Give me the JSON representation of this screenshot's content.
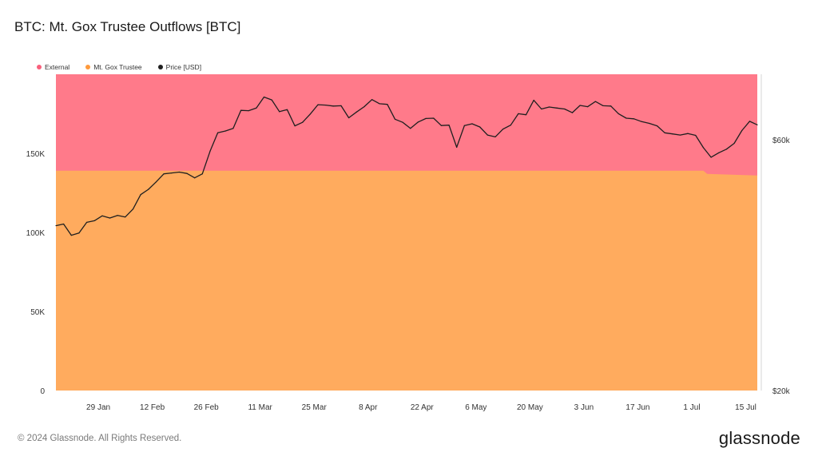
{
  "chart_data": {
    "type": "area",
    "title": "BTC: Mt. Gox Trustee Outflows [BTC]",
    "x_ticks": [
      "29 Jan",
      "12 Feb",
      "26 Feb",
      "11 Mar",
      "25 Mar",
      "8 Apr",
      "22 Apr",
      "6 May",
      "20 May",
      "3 Jun",
      "17 Jun",
      "1 Jul",
      "15 Jul"
    ],
    "x_range": [
      "2024-01-18",
      "2024-07-18"
    ],
    "y_left": {
      "ticks": [
        "0",
        "50K",
        "100K",
        "150K"
      ],
      "values": [
        0,
        50000,
        100000,
        150000
      ],
      "ylim": [
        0,
        200000
      ]
    },
    "y_right": {
      "ticks": [
        "$20k",
        "$60k"
      ],
      "values": [
        20000,
        60000
      ],
      "scale": "log",
      "ylim": [
        20000,
        80000
      ]
    },
    "legend": {
      "position": "top-left",
      "entries": [
        "External",
        "Mt. Gox Trustee",
        "Price [USD]"
      ]
    },
    "series": [
      {
        "name": "External",
        "color": "#ff7a8a",
        "axis": "left",
        "type": "area",
        "x": [
          "2024-01-18",
          "2024-07-18"
        ],
        "values": [
          61000,
          64000
        ]
      },
      {
        "name": "Mt. Gox Trustee",
        "color": "#ffab5e",
        "axis": "left",
        "type": "area",
        "x": [
          "2024-01-18",
          "2024-07-04",
          "2024-07-05",
          "2024-07-18"
        ],
        "values": [
          139000,
          139000,
          137000,
          136000
        ]
      },
      {
        "name": "Price [USD]",
        "color": "#1f1f1f",
        "axis": "right",
        "type": "line",
        "x": [
          "2024-01-18",
          "2024-01-20",
          "2024-01-22",
          "2024-01-24",
          "2024-01-26",
          "2024-01-28",
          "2024-01-30",
          "2024-02-01",
          "2024-02-03",
          "2024-02-05",
          "2024-02-07",
          "2024-02-09",
          "2024-02-11",
          "2024-02-13",
          "2024-02-15",
          "2024-02-17",
          "2024-02-19",
          "2024-02-21",
          "2024-02-23",
          "2024-02-25",
          "2024-02-27",
          "2024-02-29",
          "2024-03-02",
          "2024-03-04",
          "2024-03-06",
          "2024-03-08",
          "2024-03-10",
          "2024-03-12",
          "2024-03-14",
          "2024-03-16",
          "2024-03-18",
          "2024-03-20",
          "2024-03-22",
          "2024-03-24",
          "2024-03-26",
          "2024-03-28",
          "2024-03-30",
          "2024-04-01",
          "2024-04-03",
          "2024-04-05",
          "2024-04-07",
          "2024-04-09",
          "2024-04-11",
          "2024-04-13",
          "2024-04-15",
          "2024-04-17",
          "2024-04-19",
          "2024-04-21",
          "2024-04-23",
          "2024-04-25",
          "2024-04-27",
          "2024-04-29",
          "2024-05-01",
          "2024-05-03",
          "2024-05-05",
          "2024-05-07",
          "2024-05-09",
          "2024-05-11",
          "2024-05-13",
          "2024-05-15",
          "2024-05-17",
          "2024-05-19",
          "2024-05-21",
          "2024-05-23",
          "2024-05-25",
          "2024-05-27",
          "2024-05-29",
          "2024-05-31",
          "2024-06-02",
          "2024-06-04",
          "2024-06-06",
          "2024-06-08",
          "2024-06-10",
          "2024-06-12",
          "2024-06-14",
          "2024-06-16",
          "2024-06-18",
          "2024-06-20",
          "2024-06-22",
          "2024-06-24",
          "2024-06-26",
          "2024-06-28",
          "2024-06-30",
          "2024-07-02",
          "2024-07-04",
          "2024-07-06",
          "2024-07-08",
          "2024-07-10",
          "2024-07-12",
          "2024-07-14",
          "2024-07-16",
          "2024-07-18"
        ],
        "values": [
          41200,
          41500,
          39500,
          39900,
          41800,
          42100,
          43000,
          42600,
          43100,
          42800,
          44300,
          47200,
          48300,
          49900,
          51700,
          51900,
          52100,
          51800,
          50800,
          51700,
          57100,
          61900,
          62400,
          63100,
          68300,
          68200,
          69000,
          72400,
          71500,
          67900,
          68500,
          63800,
          64800,
          67200,
          70000,
          69900,
          69600,
          69700,
          66100,
          67800,
          69400,
          71600,
          70300,
          70100,
          65700,
          64800,
          63100,
          64900,
          65900,
          66000,
          63900,
          64000,
          58100,
          63900,
          64400,
          63500,
          61300,
          60800,
          62900,
          64000,
          67300,
          67000,
          71400,
          68700,
          69300,
          69000,
          68700,
          67600,
          69800,
          69400,
          71000,
          69700,
          69600,
          67300,
          66000,
          65800,
          65000,
          64500,
          63800,
          61900,
          61600,
          61300,
          61700,
          61200,
          58000,
          55600,
          56700,
          57600,
          59100,
          62500,
          65100,
          64100
        ]
      }
    ]
  },
  "footer": {
    "copyright": "© 2024 Glassnode. All Rights Reserved.",
    "brand": "glassnode"
  }
}
